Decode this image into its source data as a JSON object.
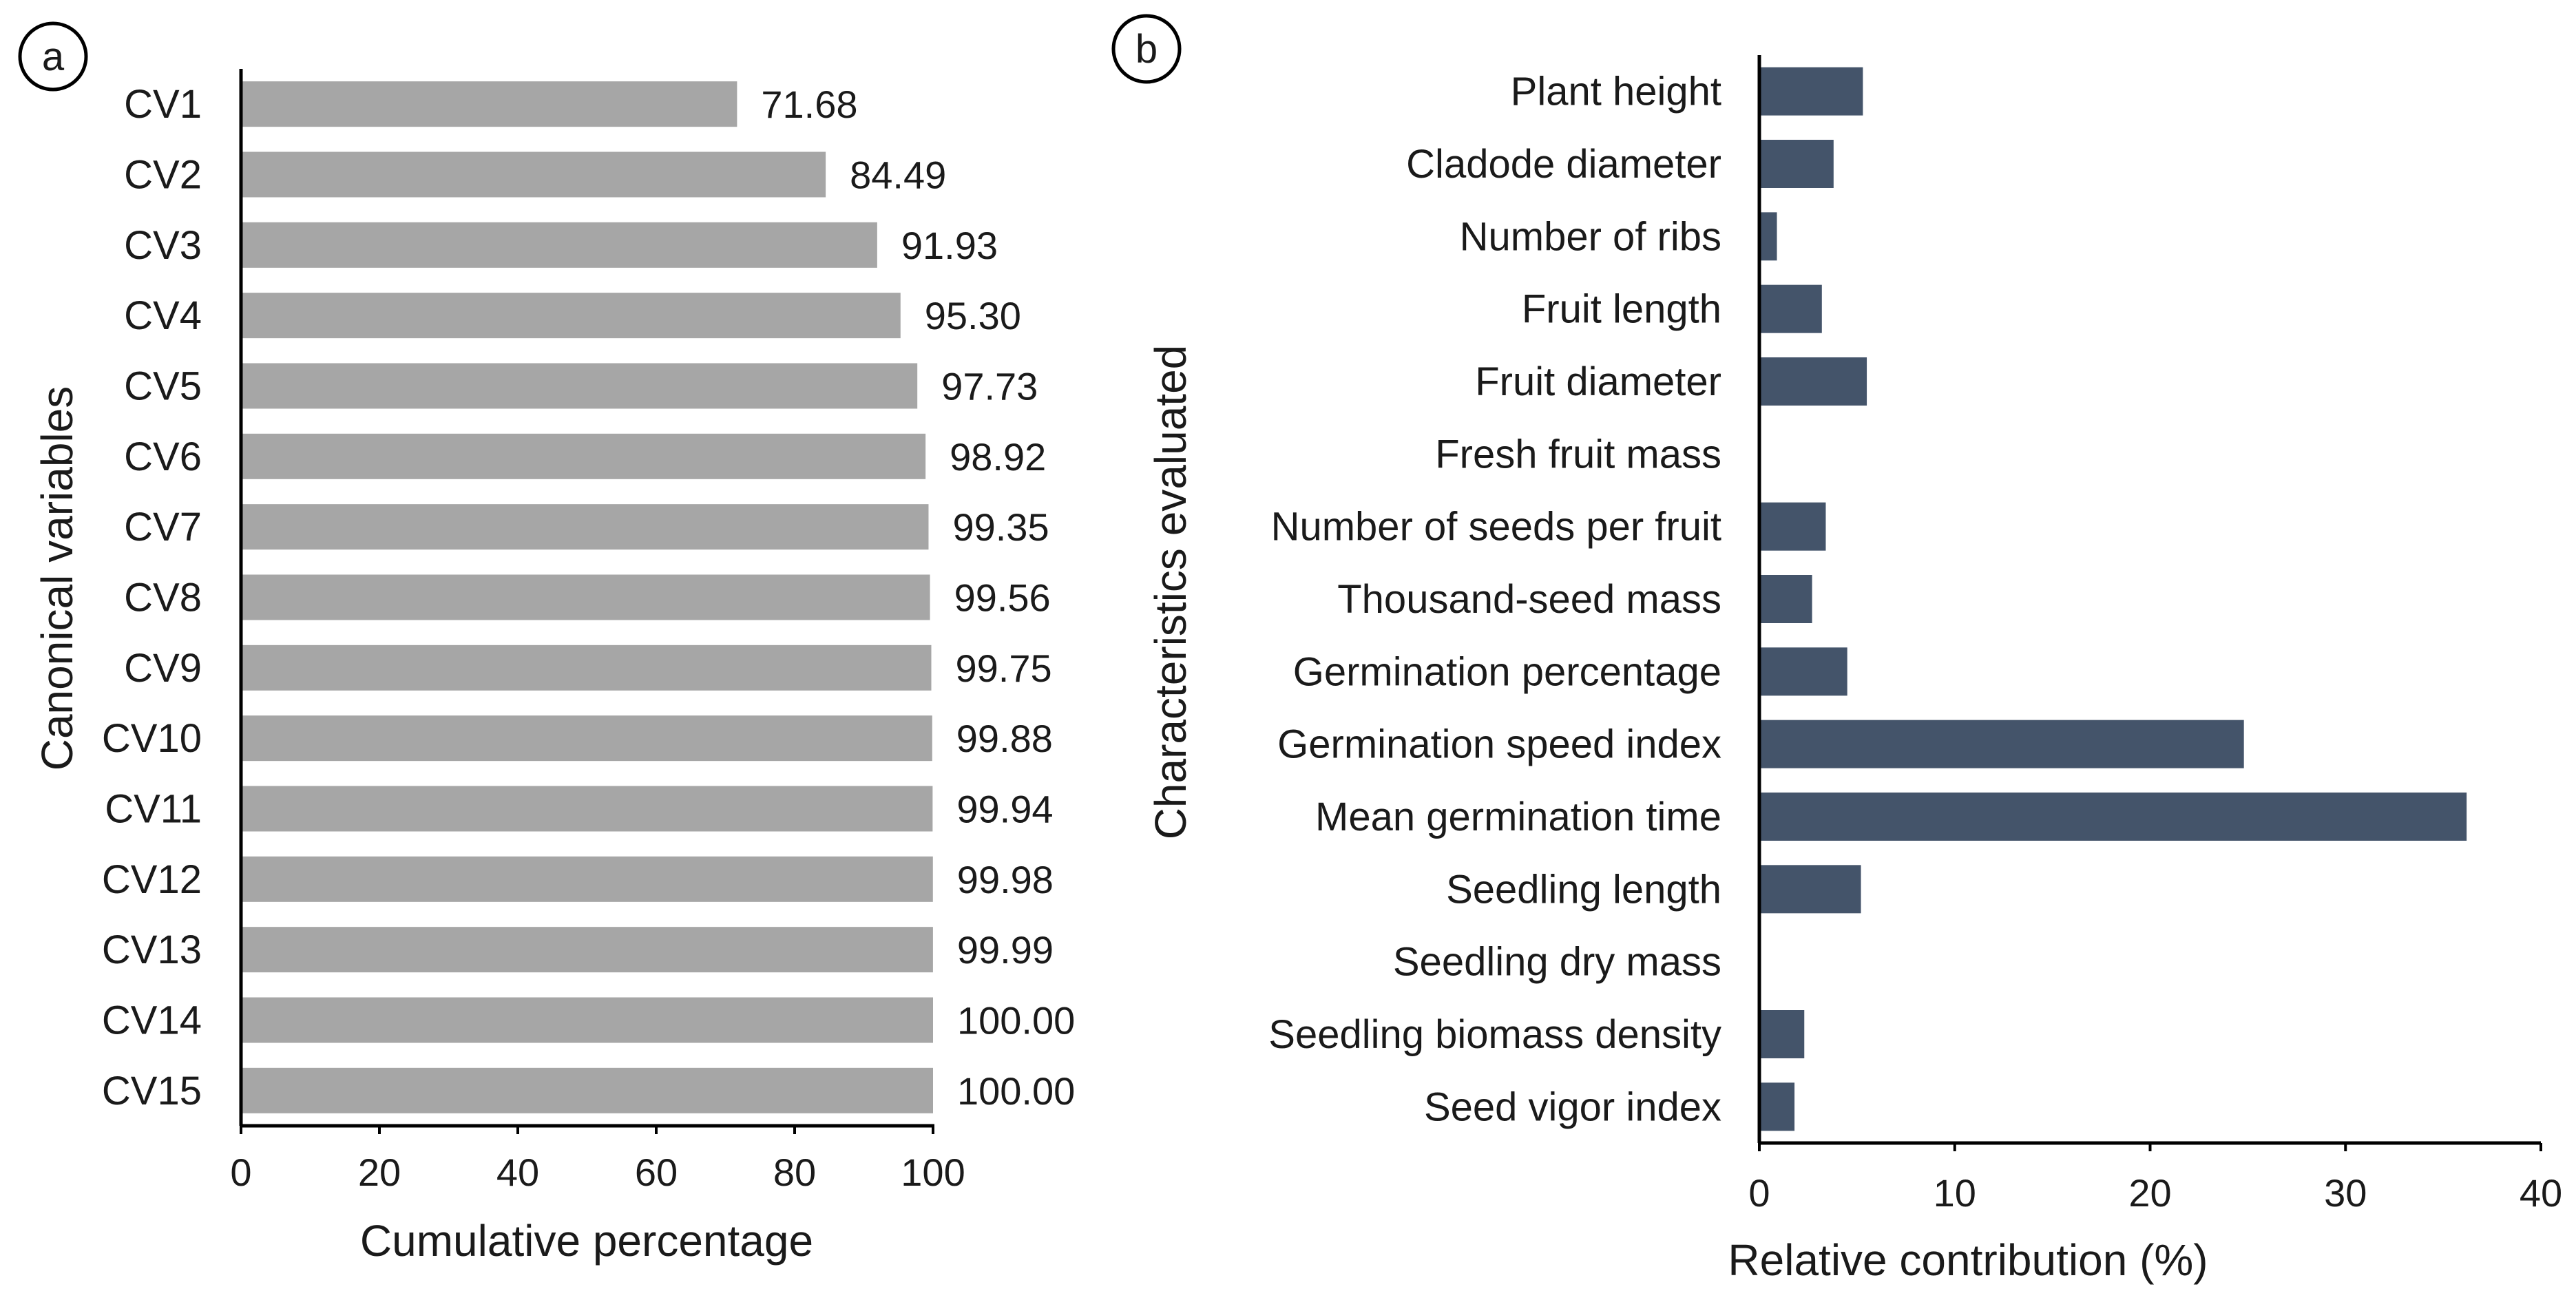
{
  "colors": {
    "panel_a_bar": "#a6a6a6",
    "panel_b_bar": "#44546a",
    "axis": "#000000",
    "text": "#1a1a1a"
  },
  "chart_data": [
    {
      "type": "bar",
      "orientation": "horizontal",
      "panel_label": "a",
      "title": "",
      "xlabel": "Cumulative  percentage",
      "ylabel": "Canonical variables",
      "categories": [
        "CV1",
        "CV2",
        "CV3",
        "CV4",
        "CV5",
        "CV6",
        "CV7",
        "CV8",
        "CV9",
        "CV10",
        "CV11",
        "CV12",
        "CV13",
        "CV14",
        "CV15"
      ],
      "values": [
        71.68,
        84.49,
        91.93,
        95.3,
        97.73,
        98.92,
        99.35,
        99.56,
        99.75,
        99.88,
        99.94,
        99.98,
        99.99,
        100.0,
        100.0
      ],
      "value_labels": [
        "71.68",
        "84.49",
        "91.93",
        "95.30",
        "97.73",
        "98.92",
        "99.35",
        "99.56",
        "99.75",
        "99.88",
        "99.94",
        "99.98",
        "99.99",
        "100.00",
        "100.00"
      ],
      "xlim": [
        0,
        100
      ],
      "xticks": [
        0,
        20,
        40,
        60,
        80,
        100
      ],
      "xtick_labels": [
        "0",
        "20",
        "40",
        "60",
        "80",
        "100"
      ],
      "grid": false
    },
    {
      "type": "bar",
      "orientation": "horizontal",
      "panel_label": "b",
      "title": "",
      "xlabel": "Relative contribution (%)",
      "ylabel": "Characteristics evaluated",
      "categories": [
        "Plant height",
        "Cladode diameter",
        "Number of ribs",
        "Fruit length",
        "Fruit diameter",
        "Fresh fruit mass",
        "Number of seeds per fruit",
        "Thousand-seed mass",
        "Germination percentage",
        "Germination speed index",
        "Mean germination time",
        "Seedling length",
        "Seedling dry mass",
        "Seedling biomass density",
        "Seed vigor index"
      ],
      "values": [
        5.3,
        3.8,
        0.9,
        3.2,
        5.5,
        0.0,
        3.4,
        2.7,
        4.5,
        24.8,
        36.2,
        5.2,
        0.0,
        2.3,
        1.8
      ],
      "xlim": [
        0,
        40
      ],
      "xticks": [
        0,
        10,
        20,
        30,
        40
      ],
      "xtick_labels": [
        "0",
        "10",
        "20",
        "30",
        "40"
      ],
      "grid": false
    }
  ]
}
